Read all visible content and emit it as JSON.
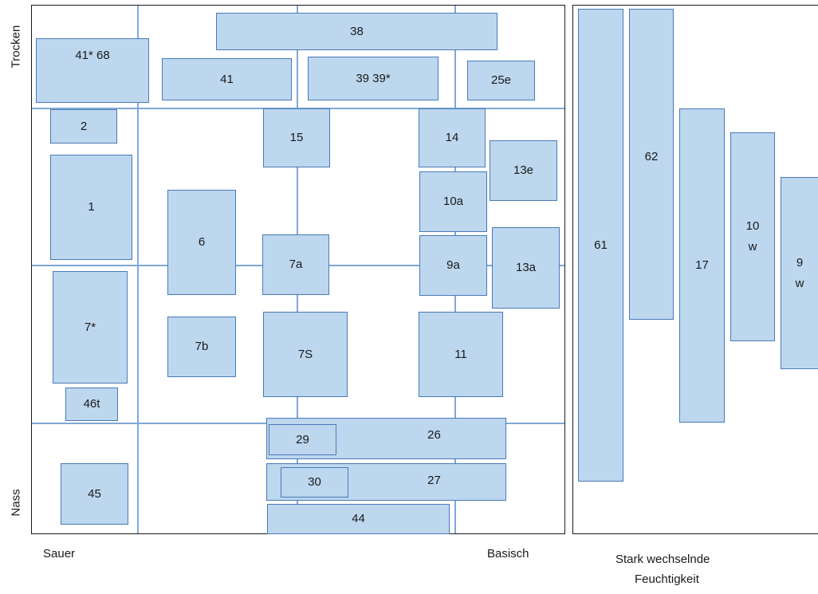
{
  "axes": {
    "y_top": "Trocken",
    "y_bottom": "Nass",
    "x_left": "Sauer",
    "x_right": "Basisch",
    "side_line1": "Stark wechselnde",
    "side_line2": "Feuchtigkeit"
  },
  "units": {
    "u38": "38",
    "u41s68": "41* 68",
    "u41": "41",
    "u39": "39 39*",
    "u25e": "25e",
    "u2": "2",
    "u15": "15",
    "u14": "14",
    "u13e": "13e",
    "u1": "1",
    "u10a": "10a",
    "u6": "6",
    "u7a": "7a",
    "u9a": "9a",
    "u13a": "13a",
    "u7s": "7*",
    "u7b": "7b",
    "u7S": "7S",
    "u11": "11",
    "u46t": "46t",
    "u26": "26",
    "u29": "29",
    "u27": "27",
    "u30": "30",
    "u45": "45",
    "u44": "44",
    "u61": "61",
    "u62": "62",
    "u17": "17",
    "u10w_a": "10",
    "u10w_b": "w",
    "u9w_a": "9",
    "u9w_b": "w"
  }
}
